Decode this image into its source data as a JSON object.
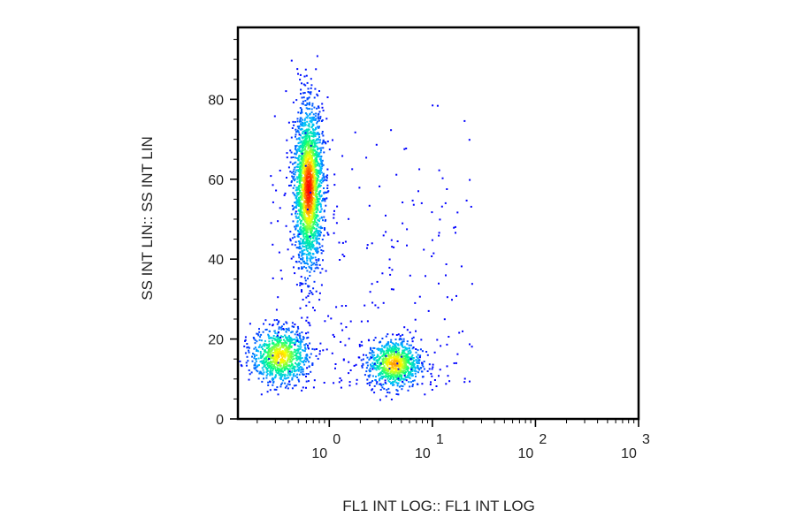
{
  "chart_data": {
    "type": "scatter",
    "title": "",
    "xlabel": "FL1 INT LOG:: FL1 INT LOG",
    "ylabel": "SS INT LIN:: SS INT LIN",
    "x_scale": "log",
    "xlim": [
      0.13,
      1000
    ],
    "ylim": [
      0,
      98
    ],
    "x_ticks": [
      {
        "base": "10",
        "exp": "0",
        "value": 1
      },
      {
        "base": "10",
        "exp": "1",
        "value": 10
      },
      {
        "base": "10",
        "exp": "2",
        "value": 100
      },
      {
        "base": "10",
        "exp": "3",
        "value": 1000
      }
    ],
    "y_ticks": [
      {
        "label": "0",
        "value": 0
      },
      {
        "label": "20",
        "value": 20
      },
      {
        "label": "40",
        "value": 40
      },
      {
        "label": "60",
        "value": 60
      },
      {
        "label": "80",
        "value": 80
      }
    ],
    "grid": false,
    "legend": "none",
    "colormap": [
      "#0000ff",
      "#00bfff",
      "#00ff80",
      "#ffff00",
      "#ff0000"
    ],
    "populations": [
      {
        "x_center": 0.62,
        "x_spread_decades": 0.07,
        "y_center": 58,
        "y_spread": 10,
        "count": 2200,
        "peak_density": 1.0
      },
      {
        "x_center": 0.33,
        "x_spread_decades": 0.14,
        "y_center": 16,
        "y_spread": 3.5,
        "count": 900,
        "peak_density": 0.8
      },
      {
        "x_center": 4.2,
        "x_spread_decades": 0.13,
        "y_center": 14,
        "y_spread": 3,
        "count": 850,
        "peak_density": 0.85
      }
    ]
  }
}
